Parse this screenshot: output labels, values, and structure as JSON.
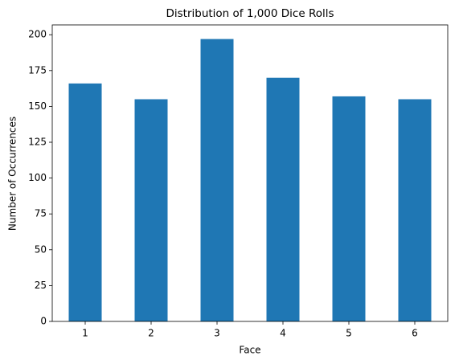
{
  "chart_data": {
    "type": "bar",
    "title": "Distribution of 1,000 Dice Rolls",
    "x_label": "Face",
    "y_label": "Number of Occurrences",
    "categories": [
      "1",
      "2",
      "3",
      "4",
      "5",
      "6"
    ],
    "values": [
      166,
      155,
      197,
      170,
      157,
      155
    ],
    "color": "#1f77b4",
    "ylim": [
      0,
      206.85
    ],
    "yticks": [
      0,
      25,
      50,
      75,
      100,
      125,
      150,
      175,
      200
    ],
    "grid": false
  }
}
